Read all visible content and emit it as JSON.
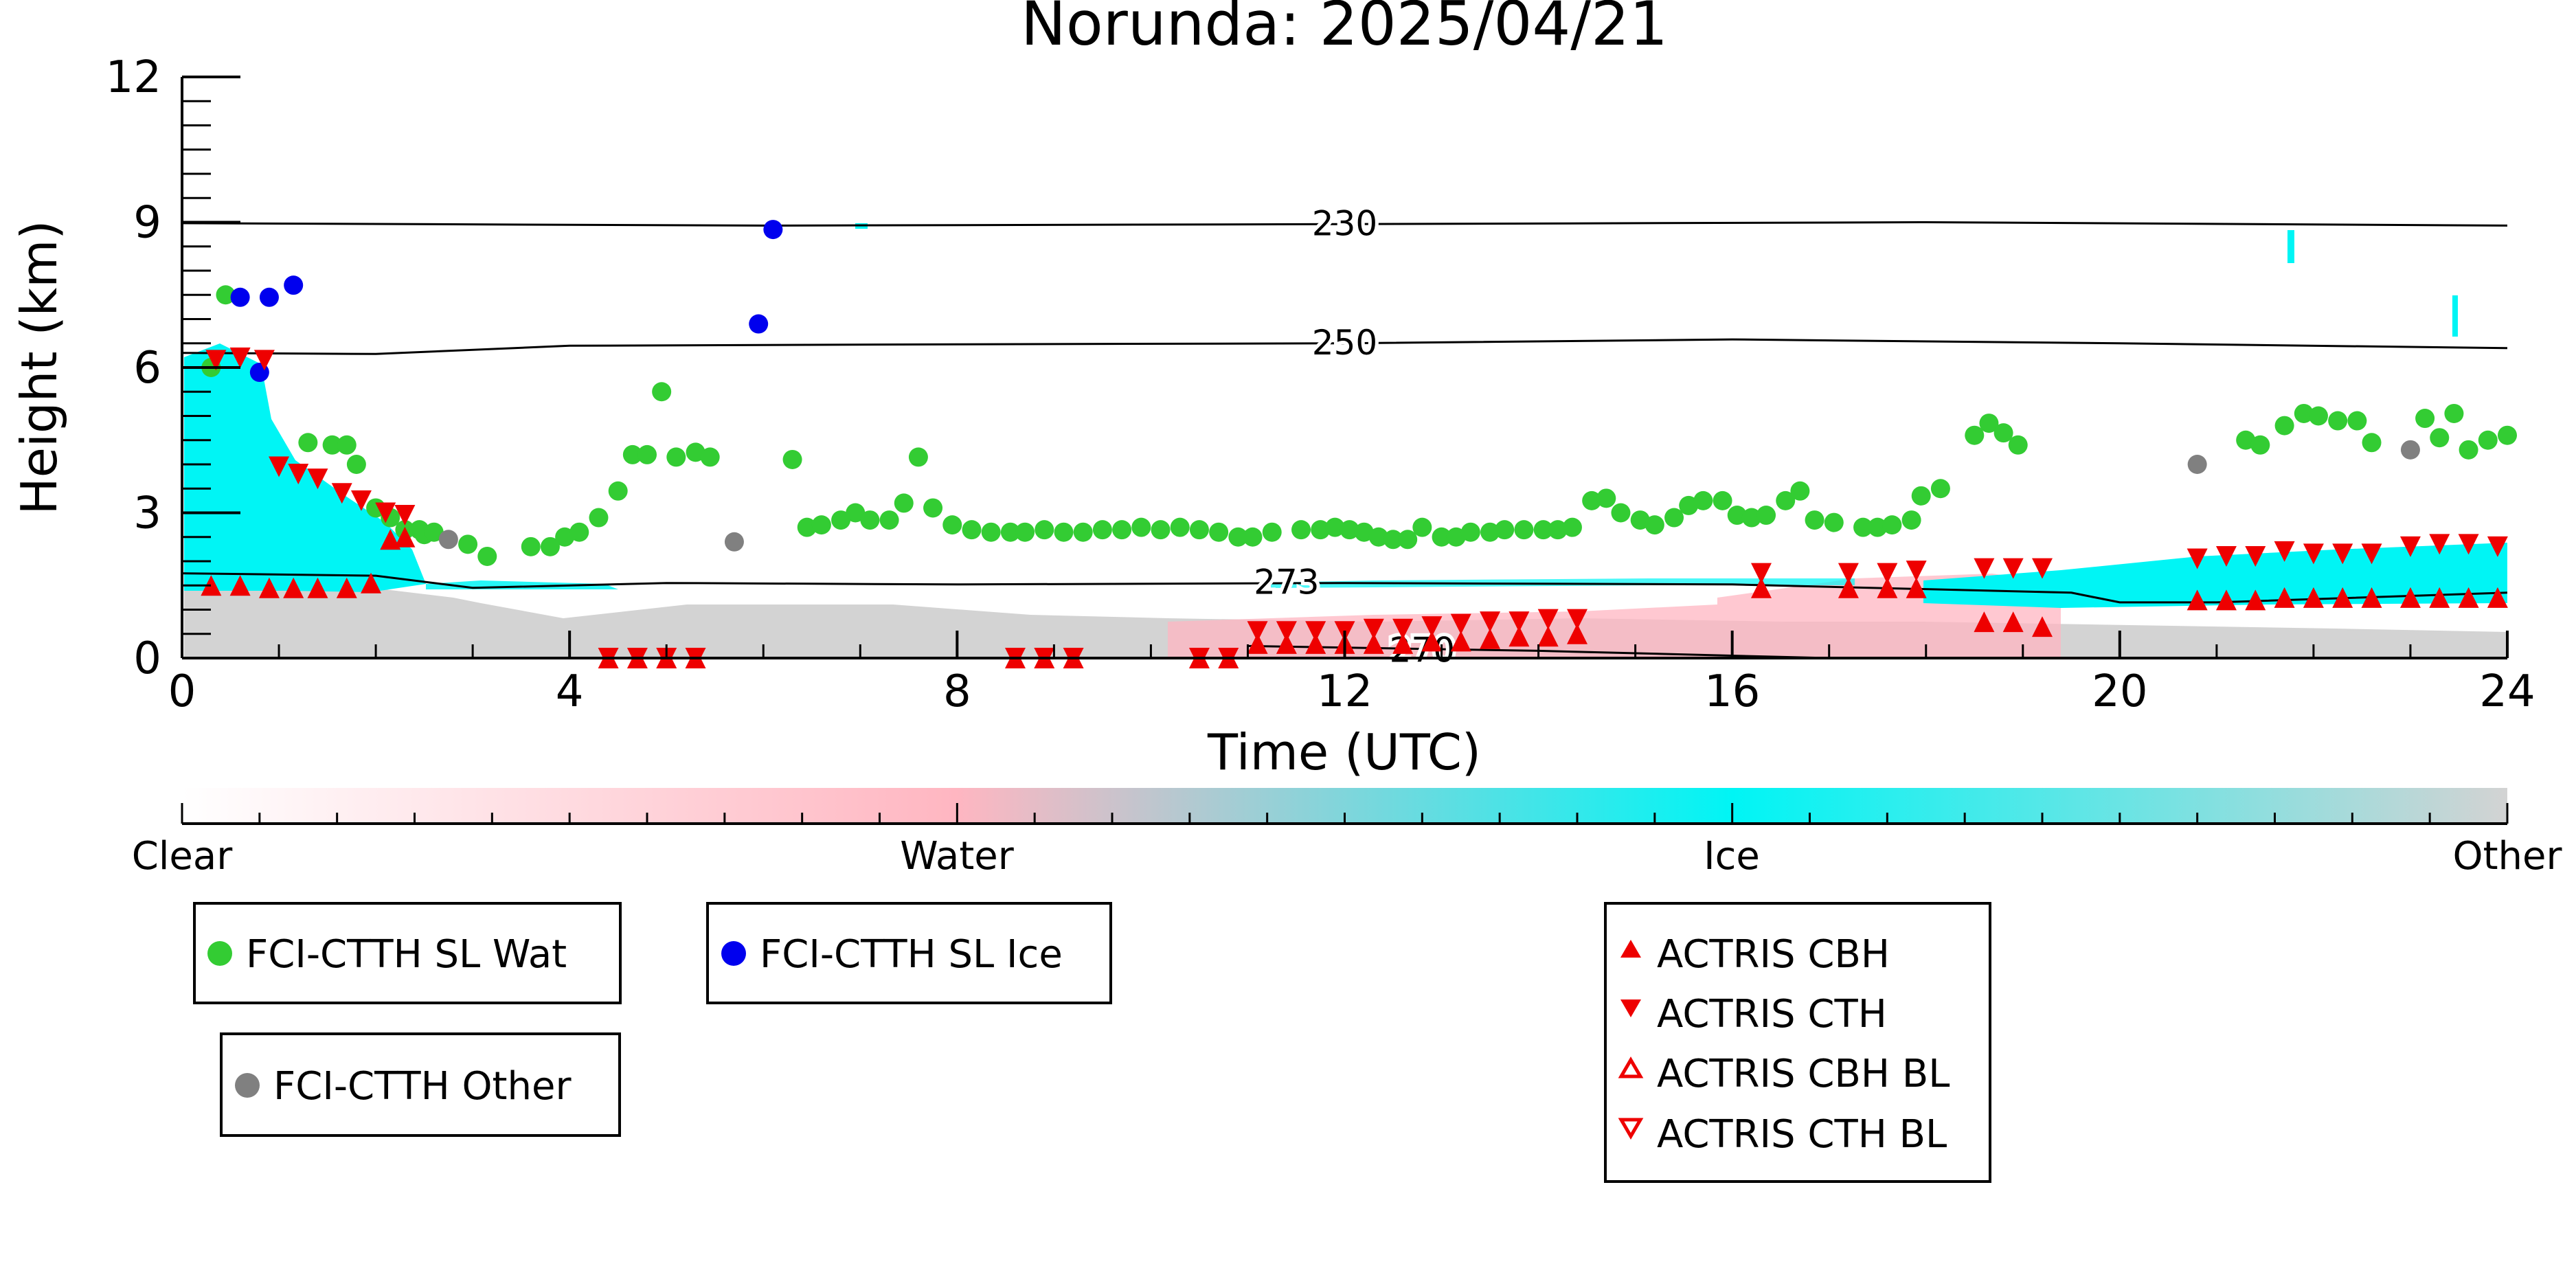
{
  "title": "Norunda: 2025/04/21",
  "chart_data": {
    "type": "scatter",
    "title": "Norunda: 2025/04/21",
    "xlabel": "Time (UTC)",
    "ylabel": "Height (km)",
    "xlim": [
      0,
      24
    ],
    "ylim": [
      0,
      12
    ],
    "xticks": [
      0,
      4,
      8,
      12,
      16,
      20,
      24
    ],
    "yticks": [
      0,
      3,
      6,
      9,
      12
    ],
    "grid": false,
    "colorbar": {
      "labels": [
        "Clear",
        "Water",
        "Ice",
        "Other"
      ],
      "colors": [
        "#ffffff",
        "#ffb6c1",
        "#00f5f5",
        "#d3d3d3"
      ]
    },
    "contours": [
      {
        "label": "230",
        "points": [
          [
            0,
            8.98
          ],
          [
            6,
            8.93
          ],
          [
            12,
            8.96
          ],
          [
            18,
            9.0
          ],
          [
            24,
            8.93
          ]
        ]
      },
      {
        "label": "250",
        "points": [
          [
            0,
            6.3
          ],
          [
            2,
            6.28
          ],
          [
            4,
            6.45
          ],
          [
            8,
            6.48
          ],
          [
            12,
            6.5
          ],
          [
            16,
            6.58
          ],
          [
            20,
            6.5
          ],
          [
            24,
            6.4
          ]
        ]
      },
      {
        "label": "273",
        "points": [
          [
            0,
            1.75
          ],
          [
            2,
            1.7
          ],
          [
            3,
            1.45
          ],
          [
            5,
            1.55
          ],
          [
            8,
            1.52
          ],
          [
            12,
            1.55
          ],
          [
            16,
            1.52
          ],
          [
            19.5,
            1.35
          ],
          [
            20,
            1.15
          ],
          [
            21,
            1.15
          ],
          [
            24,
            1.35
          ]
        ]
      },
      {
        "label": "270",
        "points": [
          [
            11,
            0.25
          ],
          [
            12.5,
            0.2
          ],
          [
            14,
            0.15
          ],
          [
            16,
            0.05
          ],
          [
            17,
            0.0
          ]
        ]
      }
    ],
    "series": [
      {
        "name": "FCI-CTTH SL Wat",
        "color": "#33cc33",
        "marker": "circle",
        "points": [
          [
            0.3,
            6.0
          ],
          [
            0.45,
            7.5
          ],
          [
            1.3,
            4.45
          ],
          [
            1.55,
            4.4
          ],
          [
            1.7,
            4.4
          ],
          [
            1.8,
            4.0
          ],
          [
            2.0,
            3.1
          ],
          [
            2.15,
            2.9
          ],
          [
            2.3,
            2.65
          ],
          [
            2.45,
            2.65
          ],
          [
            2.5,
            2.55
          ],
          [
            2.6,
            2.6
          ],
          [
            2.95,
            2.35
          ],
          [
            3.15,
            2.1
          ],
          [
            3.6,
            2.3
          ],
          [
            3.8,
            2.3
          ],
          [
            3.95,
            2.5
          ],
          [
            4.1,
            2.6
          ],
          [
            4.3,
            2.9
          ],
          [
            4.5,
            3.45
          ],
          [
            4.65,
            4.2
          ],
          [
            4.8,
            4.2
          ],
          [
            4.95,
            5.5
          ],
          [
            5.1,
            4.15
          ],
          [
            5.3,
            4.25
          ],
          [
            5.45,
            4.15
          ],
          [
            6.3,
            4.1
          ],
          [
            6.45,
            2.7
          ],
          [
            6.6,
            2.75
          ],
          [
            6.8,
            2.85
          ],
          [
            6.95,
            3.0
          ],
          [
            7.1,
            2.85
          ],
          [
            7.3,
            2.85
          ],
          [
            7.45,
            3.2
          ],
          [
            7.6,
            4.15
          ],
          [
            7.75,
            3.1
          ],
          [
            7.95,
            2.75
          ],
          [
            8.15,
            2.65
          ],
          [
            8.35,
            2.6
          ],
          [
            8.55,
            2.6
          ],
          [
            8.7,
            2.6
          ],
          [
            8.9,
            2.65
          ],
          [
            9.1,
            2.6
          ],
          [
            9.3,
            2.6
          ],
          [
            9.5,
            2.65
          ],
          [
            9.7,
            2.65
          ],
          [
            9.9,
            2.7
          ],
          [
            10.1,
            2.65
          ],
          [
            10.3,
            2.7
          ],
          [
            10.5,
            2.65
          ],
          [
            10.7,
            2.6
          ],
          [
            10.9,
            2.5
          ],
          [
            11.05,
            2.5
          ],
          [
            11.25,
            2.6
          ],
          [
            11.55,
            2.65
          ],
          [
            11.75,
            2.65
          ],
          [
            11.9,
            2.7
          ],
          [
            12.05,
            2.65
          ],
          [
            12.2,
            2.6
          ],
          [
            12.35,
            2.5
          ],
          [
            12.5,
            2.45
          ],
          [
            12.65,
            2.45
          ],
          [
            12.8,
            2.7
          ],
          [
            13.0,
            2.5
          ],
          [
            13.15,
            2.5
          ],
          [
            13.3,
            2.6
          ],
          [
            13.5,
            2.6
          ],
          [
            13.65,
            2.65
          ],
          [
            13.85,
            2.65
          ],
          [
            14.05,
            2.65
          ],
          [
            14.2,
            2.65
          ],
          [
            14.35,
            2.7
          ],
          [
            14.55,
            3.25
          ],
          [
            14.7,
            3.3
          ],
          [
            14.85,
            3.0
          ],
          [
            15.05,
            2.85
          ],
          [
            15.2,
            2.75
          ],
          [
            15.4,
            2.9
          ],
          [
            15.55,
            3.15
          ],
          [
            15.7,
            3.25
          ],
          [
            15.9,
            3.25
          ],
          [
            16.05,
            2.95
          ],
          [
            16.2,
            2.9
          ],
          [
            16.35,
            2.95
          ],
          [
            16.55,
            3.25
          ],
          [
            16.7,
            3.45
          ],
          [
            16.85,
            2.85
          ],
          [
            17.05,
            2.8
          ],
          [
            17.35,
            2.7
          ],
          [
            17.5,
            2.7
          ],
          [
            17.65,
            2.75
          ],
          [
            17.85,
            2.85
          ],
          [
            17.95,
            3.35
          ],
          [
            18.15,
            3.5
          ],
          [
            18.5,
            4.6
          ],
          [
            18.65,
            4.85
          ],
          [
            18.8,
            4.65
          ],
          [
            18.95,
            4.4
          ],
          [
            21.3,
            4.5
          ],
          [
            21.45,
            4.4
          ],
          [
            21.7,
            4.8
          ],
          [
            21.9,
            5.05
          ],
          [
            22.05,
            5.0
          ],
          [
            22.25,
            4.9
          ],
          [
            22.45,
            4.9
          ],
          [
            22.6,
            4.45
          ],
          [
            23.15,
            4.95
          ],
          [
            23.3,
            4.55
          ],
          [
            23.45,
            5.05
          ],
          [
            23.6,
            4.3
          ],
          [
            23.8,
            4.5
          ],
          [
            24.0,
            4.6
          ]
        ]
      },
      {
        "name": "FCI-CTTH SL Ice",
        "color": "#0000ee",
        "marker": "circle",
        "points": [
          [
            0.6,
            7.45
          ],
          [
            0.9,
            7.45
          ],
          [
            1.15,
            7.7
          ],
          [
            0.8,
            5.9
          ],
          [
            5.95,
            6.9
          ],
          [
            6.1,
            8.85
          ]
        ]
      },
      {
        "name": "FCI-CTTH Other",
        "color": "#808080",
        "marker": "circle",
        "points": [
          [
            2.75,
            2.45
          ],
          [
            5.7,
            2.4
          ],
          [
            20.8,
            4.0
          ],
          [
            23.0,
            4.3
          ]
        ]
      },
      {
        "name": "ACTRIS CBH",
        "color": "#ee0000",
        "marker": "triangle-up",
        "points": [
          [
            0.3,
            1.5
          ],
          [
            0.6,
            1.5
          ],
          [
            0.9,
            1.45
          ],
          [
            1.15,
            1.45
          ],
          [
            1.4,
            1.45
          ],
          [
            1.7,
            1.45
          ],
          [
            1.95,
            1.55
          ],
          [
            2.15,
            2.45
          ],
          [
            2.3,
            2.5
          ],
          [
            4.4,
            0.0
          ],
          [
            4.7,
            0.0
          ],
          [
            5.0,
            0.0
          ],
          [
            5.3,
            0.0
          ],
          [
            8.6,
            0.0
          ],
          [
            8.9,
            0.0
          ],
          [
            9.2,
            0.0
          ],
          [
            10.5,
            0.0
          ],
          [
            10.8,
            0.0
          ],
          [
            11.1,
            0.3
          ],
          [
            11.4,
            0.3
          ],
          [
            11.7,
            0.3
          ],
          [
            12.0,
            0.3
          ],
          [
            12.3,
            0.3
          ],
          [
            12.6,
            0.3
          ],
          [
            12.9,
            0.35
          ],
          [
            13.2,
            0.35
          ],
          [
            13.5,
            0.4
          ],
          [
            13.8,
            0.45
          ],
          [
            14.1,
            0.45
          ],
          [
            14.4,
            0.5
          ],
          [
            16.3,
            1.45
          ],
          [
            17.2,
            1.45
          ],
          [
            17.6,
            1.45
          ],
          [
            17.9,
            1.45
          ],
          [
            18.6,
            0.75
          ],
          [
            18.9,
            0.75
          ],
          [
            19.2,
            0.65
          ],
          [
            20.8,
            1.2
          ],
          [
            21.1,
            1.2
          ],
          [
            21.4,
            1.2
          ],
          [
            21.7,
            1.25
          ],
          [
            22.0,
            1.25
          ],
          [
            22.3,
            1.25
          ],
          [
            22.6,
            1.25
          ],
          [
            23.0,
            1.25
          ],
          [
            23.3,
            1.25
          ],
          [
            23.6,
            1.25
          ],
          [
            23.9,
            1.25
          ]
        ]
      },
      {
        "name": "ACTRIS CTH",
        "color": "#ee0000",
        "marker": "triangle-down",
        "points": [
          [
            0.35,
            6.15
          ],
          [
            0.6,
            6.2
          ],
          [
            0.85,
            6.15
          ],
          [
            1.0,
            3.95
          ],
          [
            1.2,
            3.8
          ],
          [
            1.4,
            3.7
          ],
          [
            1.65,
            3.4
          ],
          [
            1.85,
            3.25
          ],
          [
            2.1,
            3.0
          ],
          [
            2.3,
            2.95
          ],
          [
            4.4,
            0.0
          ],
          [
            4.7,
            0.0
          ],
          [
            5.0,
            0.0
          ],
          [
            5.3,
            0.0
          ],
          [
            8.6,
            0.0
          ],
          [
            8.9,
            0.0
          ],
          [
            9.2,
            0.0
          ],
          [
            10.5,
            0.0
          ],
          [
            10.8,
            0.0
          ],
          [
            11.1,
            0.55
          ],
          [
            11.4,
            0.55
          ],
          [
            11.7,
            0.55
          ],
          [
            12.0,
            0.55
          ],
          [
            12.3,
            0.6
          ],
          [
            12.6,
            0.6
          ],
          [
            12.9,
            0.65
          ],
          [
            13.2,
            0.7
          ],
          [
            13.5,
            0.75
          ],
          [
            13.8,
            0.75
          ],
          [
            14.1,
            0.8
          ],
          [
            14.4,
            0.8
          ],
          [
            16.3,
            1.75
          ],
          [
            17.2,
            1.75
          ],
          [
            17.6,
            1.75
          ],
          [
            17.9,
            1.8
          ],
          [
            18.6,
            1.85
          ],
          [
            18.9,
            1.85
          ],
          [
            19.2,
            1.85
          ],
          [
            20.8,
            2.05
          ],
          [
            21.1,
            2.1
          ],
          [
            21.4,
            2.1
          ],
          [
            21.7,
            2.2
          ],
          [
            22.0,
            2.15
          ],
          [
            22.3,
            2.15
          ],
          [
            22.6,
            2.15
          ],
          [
            23.0,
            2.3
          ],
          [
            23.3,
            2.35
          ],
          [
            23.6,
            2.35
          ],
          [
            23.9,
            2.3
          ]
        ]
      },
      {
        "name": "ACTRIS CBH BL",
        "color": "#ee0000",
        "marker": "triangle-up-open",
        "points": []
      },
      {
        "name": "ACTRIS CTH BL",
        "color": "#ee0000",
        "marker": "triangle-down-open",
        "points": []
      }
    ]
  }
}
